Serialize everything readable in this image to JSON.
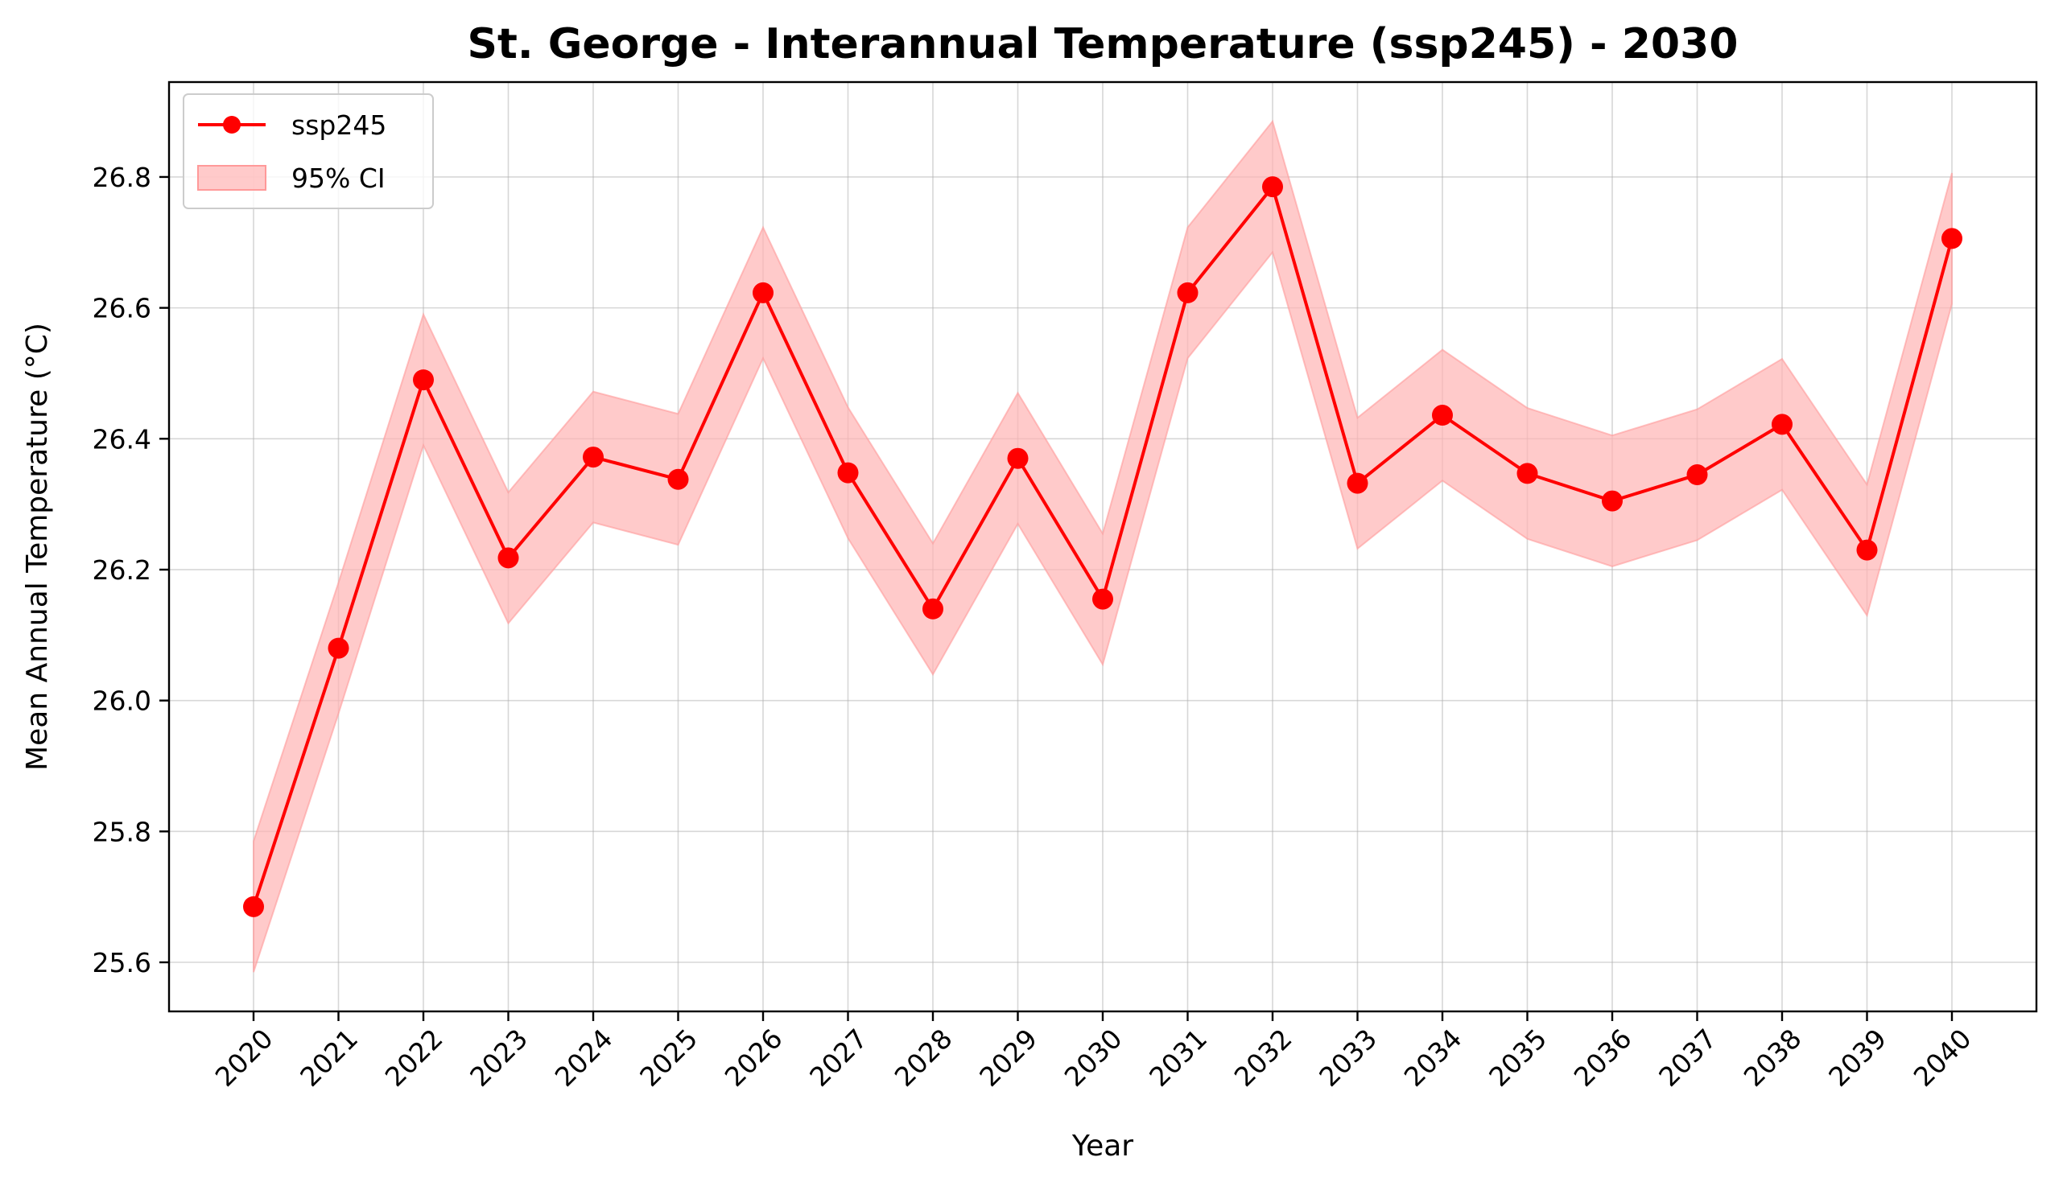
{
  "chart_data": {
    "type": "line",
    "title": "St. George - Interannual Temperature (ssp245) - 2030",
    "xlabel": "Year",
    "ylabel": "Mean Annual Temperature (°C)",
    "ylim": [
      25.525,
      26.945
    ],
    "yticks": [
      25.6,
      25.8,
      26.0,
      26.2,
      26.4,
      26.6,
      26.8
    ],
    "ytick_labels": [
      "25.6",
      "25.8",
      "26.0",
      "26.2",
      "26.4",
      "26.6",
      "26.8"
    ],
    "grid": true,
    "legend_position": "upper-left",
    "categories": [
      "2020",
      "2021",
      "2022",
      "2023",
      "2024",
      "2025",
      "2026",
      "2027",
      "2028",
      "2029",
      "2030",
      "2031",
      "2032",
      "2033",
      "2034",
      "2035",
      "2036",
      "2037",
      "2038",
      "2039",
      "2040"
    ],
    "series": [
      {
        "name": "ssp245",
        "color": "#ff0000",
        "marker": "circle",
        "values": [
          25.685,
          26.08,
          26.49,
          26.218,
          26.372,
          26.338,
          26.623,
          26.348,
          26.14,
          26.37,
          26.155,
          26.623,
          26.785,
          26.332,
          26.436,
          26.347,
          26.305,
          26.345,
          26.422,
          26.23,
          26.706
        ]
      }
    ],
    "ci_band": {
      "name": "95% CI",
      "color": "#ffb3b3",
      "lower": [
        25.585,
        25.98,
        26.39,
        26.118,
        26.272,
        26.238,
        26.523,
        26.248,
        26.04,
        26.27,
        26.055,
        26.523,
        26.685,
        26.232,
        26.336,
        26.247,
        26.205,
        26.245,
        26.322,
        26.13,
        26.606
      ],
      "upper": [
        25.785,
        26.18,
        26.59,
        26.318,
        26.472,
        26.438,
        26.723,
        26.448,
        26.24,
        26.47,
        26.255,
        26.723,
        26.885,
        26.432,
        26.536,
        26.447,
        26.405,
        26.445,
        26.522,
        26.33,
        26.806
      ]
    }
  }
}
